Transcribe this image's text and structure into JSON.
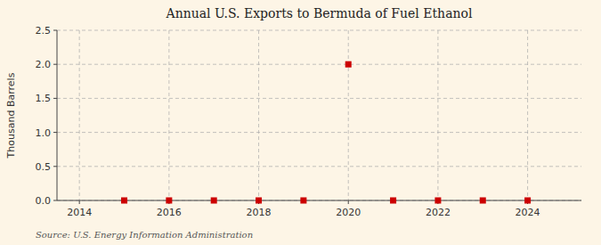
{
  "chart_data": {
    "type": "scatter",
    "title": "Annual U.S. Exports to Bermuda of Fuel Ethanol",
    "ylabel": "Thousand Barrels",
    "annotations": [
      "Source: U.S. Energy Information Administration"
    ],
    "x": [
      2015,
      2016,
      2017,
      2018,
      2019,
      2020,
      2021,
      2022,
      2023,
      2024
    ],
    "values": [
      0.0,
      0.0,
      0.0,
      0.0,
      0.0,
      2.0,
      0.0,
      0.0,
      0.0,
      0.0
    ],
    "color": "#cc0000",
    "marker": "square",
    "xlim": [
      2013.5,
      2025.2
    ],
    "ylim": [
      0.0,
      2.5
    ],
    "xticks": [
      2014,
      2016,
      2018,
      2020,
      2022,
      2024
    ],
    "yticks": [
      {
        "value": 0.0,
        "label": "0.0"
      },
      0.5,
      {
        "value": 1.0,
        "label": "1.0"
      },
      1.5,
      {
        "value": 2.0,
        "label": "2.0"
      },
      2.5
    ],
    "grid": true
  }
}
